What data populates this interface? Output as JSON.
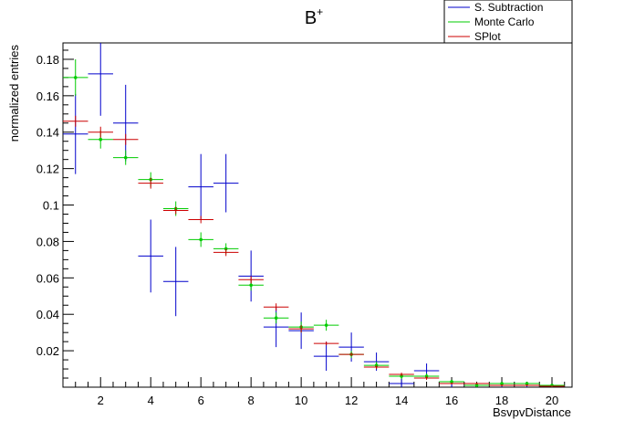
{
  "chart_data": {
    "type": "scatter",
    "title": "B",
    "title_superscript": "+",
    "xlabel": "BsvpvDistance",
    "ylabel": "normalized entries",
    "xlim": [
      0.5,
      20.8
    ],
    "ylim": [
      0.0,
      0.189
    ],
    "x_ticks": [
      2,
      4,
      6,
      8,
      10,
      12,
      14,
      16,
      18,
      20
    ],
    "x_tick_labels": [
      "2",
      "4",
      "6",
      "8",
      "10",
      "12",
      "14",
      "16",
      "18",
      "20"
    ],
    "y_ticks": [
      0.02,
      0.04,
      0.06,
      0.08,
      0.1,
      0.12,
      0.14,
      0.16,
      0.18
    ],
    "y_tick_labels": [
      "0.02",
      "0.04",
      "0.06",
      "0.08",
      "0.1",
      "0.12",
      "0.14",
      "0.16",
      "0.18"
    ],
    "bin_width": 1.0,
    "grid": false,
    "legend_position": "top-right",
    "series": [
      {
        "name": "S. Subtraction",
        "color": "#0000cc",
        "x": [
          1,
          2,
          3,
          4,
          5,
          6,
          7,
          8,
          9,
          10,
          11,
          12,
          13,
          14,
          15,
          16,
          17,
          18,
          19,
          20
        ],
        "y": [
          0.139,
          0.172,
          0.145,
          0.072,
          0.058,
          0.11,
          0.112,
          0.061,
          0.033,
          0.031,
          0.017,
          0.022,
          0.014,
          0.002,
          0.009,
          0.002,
          0.001,
          0.001,
          0.001,
          0.0005
        ],
        "err": [
          0.022,
          0.023,
          0.021,
          0.02,
          0.019,
          0.018,
          0.016,
          0.014,
          0.011,
          0.01,
          0.008,
          0.008,
          0.005,
          0.003,
          0.004,
          0.002,
          0.001,
          0.001,
          0.001,
          0.0005
        ]
      },
      {
        "name": "Monte Carlo",
        "color": "#00cc00",
        "x": [
          1,
          2,
          3,
          4,
          5,
          6,
          7,
          8,
          9,
          10,
          11,
          12,
          13,
          14,
          15,
          16,
          17,
          18,
          19,
          20
        ],
        "y": [
          0.17,
          0.136,
          0.126,
          0.114,
          0.098,
          0.081,
          0.076,
          0.056,
          0.038,
          0.033,
          0.034,
          0.018,
          0.012,
          0.006,
          0.006,
          0.003,
          0.001,
          0.002,
          0.002,
          0.001
        ],
        "err": [
          0.01,
          0.005,
          0.004,
          0.004,
          0.004,
          0.004,
          0.003,
          0.003,
          0.003,
          0.003,
          0.003,
          0.002,
          0.002,
          0.0015,
          0.0015,
          0.001,
          0.0008,
          0.0008,
          0.0008,
          0.0005
        ]
      },
      {
        "name": "SPlot",
        "color": "#cc0000",
        "x": [
          1,
          2,
          3,
          4,
          5,
          6,
          7,
          8,
          9,
          10,
          11,
          12,
          13,
          14,
          15,
          16,
          17,
          18,
          19,
          20
        ],
        "y": [
          0.146,
          0.14,
          0.136,
          0.112,
          0.097,
          0.092,
          0.074,
          0.059,
          0.044,
          0.032,
          0.024,
          0.018,
          0.011,
          0.007,
          0.005,
          0.002,
          0.002,
          0.001,
          0.001,
          0.0005
        ],
        "err": [
          0.003,
          0.003,
          0.003,
          0.003,
          0.002,
          0.002,
          0.002,
          0.002,
          0.002,
          0.002,
          0.001,
          0.001,
          0.001,
          0.001,
          0.001,
          0.0005,
          0.0005,
          0.0005,
          0.0005,
          0.0003
        ]
      }
    ]
  }
}
